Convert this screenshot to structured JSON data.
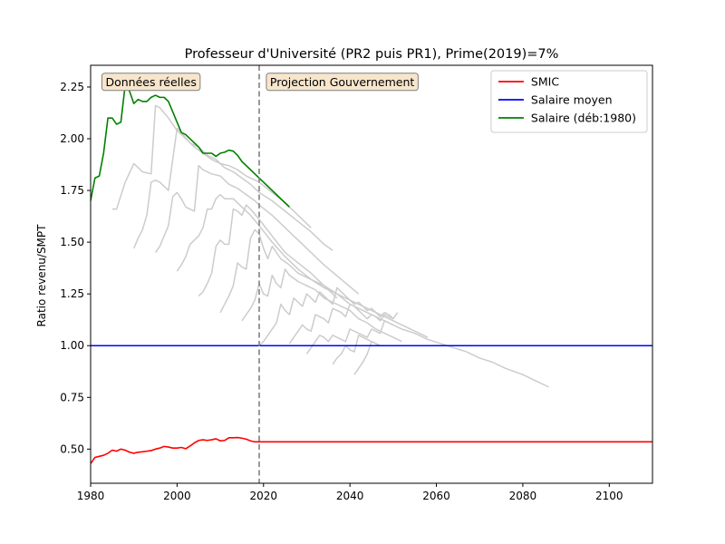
{
  "chart_data": {
    "type": "line",
    "title": "Professeur d'Université (PR2 puis PR1), Prime(2019)=7%",
    "xlabel": "",
    "ylabel": "Ratio revenu/SMPT",
    "xlim": [
      1980,
      2110
    ],
    "ylim": [
      0.335,
      2.355
    ],
    "xticks": [
      1980,
      2000,
      2020,
      2040,
      2060,
      2080,
      2100
    ],
    "yticks": [
      0.5,
      0.75,
      1.0,
      1.25,
      1.5,
      1.75,
      2.0,
      2.25
    ],
    "grid": false,
    "legend_position": "top-right",
    "vline": {
      "x": 2019,
      "color": "#808080",
      "style": "dashed"
    },
    "annotations": [
      {
        "text": "Données réelles",
        "x": 2004.5,
        "y": 2.275,
        "anchor": "end"
      },
      {
        "text": "Projection Gouvernement",
        "x": 2021.5,
        "y": 2.275,
        "anchor": "start"
      }
    ],
    "series": [
      {
        "name": "SMIC",
        "color": "#ff0000",
        "legend": true,
        "x": [
          1980,
          1981,
          1982,
          1983,
          1984,
          1985,
          1986,
          1987,
          1988,
          1989,
          1990,
          1991,
          1992,
          1993,
          1994,
          1995,
          1996,
          1997,
          1998,
          1999,
          2000,
          2001,
          2002,
          2003,
          2004,
          2005,
          2006,
          2007,
          2008,
          2009,
          2010,
          2011,
          2012,
          2013,
          2014,
          2015,
          2016,
          2017,
          2018,
          2019,
          2020,
          2110
        ],
        "y": [
          0.43,
          0.46,
          0.465,
          0.47,
          0.48,
          0.495,
          0.49,
          0.5,
          0.495,
          0.485,
          0.48,
          0.485,
          0.487,
          0.49,
          0.493,
          0.5,
          0.505,
          0.513,
          0.51,
          0.505,
          0.505,
          0.508,
          0.502,
          0.515,
          0.53,
          0.542,
          0.545,
          0.542,
          0.545,
          0.55,
          0.54,
          0.542,
          0.555,
          0.555,
          0.556,
          0.553,
          0.548,
          0.54,
          0.535,
          0.535,
          0.535,
          0.535
        ]
      },
      {
        "name": "Salaire moyen",
        "color": "#0000ff",
        "legend": true,
        "x": [
          1980,
          2110
        ],
        "y": [
          1.0,
          1.0
        ]
      },
      {
        "name": "Salaire (déb:1980)",
        "color": "#008000",
        "legend": true,
        "x": [
          1980,
          1981,
          1982,
          1983,
          1984,
          1985,
          1986,
          1987,
          1988,
          1989,
          1990,
          1991,
          1992,
          1993,
          1994,
          1995,
          1996,
          1997,
          1998,
          1999,
          2000,
          2001,
          2002,
          2003,
          2004,
          2005,
          2006,
          2007,
          2008,
          2009,
          2010,
          2011,
          2012,
          2013,
          2014,
          2015,
          2016,
          2017,
          2018,
          2019,
          2020,
          2021,
          2022,
          2023,
          2024,
          2025,
          2026
        ],
        "y": [
          1.7,
          1.81,
          1.82,
          1.93,
          2.1,
          2.1,
          2.07,
          2.08,
          2.26,
          2.23,
          2.17,
          2.19,
          2.18,
          2.18,
          2.2,
          2.21,
          2.2,
          2.2,
          2.18,
          2.13,
          2.08,
          2.03,
          2.02,
          2.0,
          1.98,
          1.96,
          1.93,
          1.93,
          1.93,
          1.915,
          1.93,
          1.935,
          1.945,
          1.94,
          1.92,
          1.89,
          1.87,
          1.85,
          1.83,
          1.81,
          1.79,
          1.77,
          1.75,
          1.73,
          1.71,
          1.69,
          1.67
        ]
      },
      {
        "name": "",
        "color": "#cccccc",
        "legend": false,
        "x": [
          1985,
          1986,
          1988,
          1990,
          1991,
          1992,
          1994,
          1995,
          1996,
          1998,
          2000,
          2001,
          2002,
          2004,
          2006,
          2008,
          2010,
          2012,
          2014,
          2016,
          2019,
          2022,
          2025,
          2028,
          2031
        ],
        "y": [
          1.66,
          1.66,
          1.79,
          1.88,
          1.86,
          1.84,
          1.83,
          2.16,
          2.15,
          2.1,
          2.04,
          2.02,
          2.0,
          1.96,
          1.93,
          1.9,
          1.88,
          1.87,
          1.85,
          1.82,
          1.79,
          1.74,
          1.69,
          1.63,
          1.57
        ]
      },
      {
        "name": "",
        "color": "#cccccc",
        "legend": false,
        "x": [
          1990,
          1991,
          1992,
          1993,
          1994,
          1995,
          1996,
          1998,
          2000,
          2001,
          2003,
          2005,
          2007,
          2009,
          2011,
          2013,
          2015,
          2017,
          2019,
          2022,
          2025,
          2028,
          2031,
          2034,
          2036
        ],
        "y": [
          1.47,
          1.52,
          1.56,
          1.63,
          1.79,
          1.8,
          1.79,
          1.75,
          2.05,
          2.03,
          1.98,
          1.96,
          1.92,
          1.9,
          1.86,
          1.84,
          1.81,
          1.78,
          1.74,
          1.7,
          1.65,
          1.6,
          1.55,
          1.49,
          1.46
        ]
      },
      {
        "name": "",
        "color": "#cccccc",
        "legend": false,
        "x": [
          1995,
          1996,
          1997,
          1998,
          1999,
          2000,
          2001,
          2002,
          2004,
          2005,
          2006,
          2008,
          2010,
          2012,
          2014,
          2016,
          2018,
          2019,
          2022,
          2026,
          2030,
          2034,
          2038,
          2042
        ],
        "y": [
          1.45,
          1.48,
          1.53,
          1.58,
          1.72,
          1.74,
          1.71,
          1.67,
          1.65,
          1.87,
          1.85,
          1.83,
          1.82,
          1.78,
          1.76,
          1.73,
          1.7,
          1.68,
          1.63,
          1.55,
          1.47,
          1.39,
          1.32,
          1.25
        ]
      },
      {
        "name": "",
        "color": "#cccccc",
        "legend": false,
        "x": [
          2000,
          2001,
          2002,
          2003,
          2004,
          2005,
          2006,
          2007,
          2008,
          2009,
          2010,
          2011,
          2013,
          2015,
          2017,
          2019,
          2022,
          2025,
          2028,
          2031,
          2034,
          2037,
          2040,
          2043,
          2046,
          2049,
          2052,
          2055,
          2058,
          2061,
          2064,
          2067,
          2070,
          2073,
          2076,
          2080,
          2083,
          2086
        ],
        "y": [
          1.36,
          1.39,
          1.43,
          1.49,
          1.51,
          1.53,
          1.57,
          1.66,
          1.66,
          1.71,
          1.73,
          1.71,
          1.71,
          1.67,
          1.63,
          1.58,
          1.5,
          1.43,
          1.37,
          1.32,
          1.29,
          1.25,
          1.2,
          1.17,
          1.14,
          1.11,
          1.08,
          1.06,
          1.03,
          1.01,
          0.99,
          0.97,
          0.94,
          0.92,
          0.89,
          0.86,
          0.83,
          0.8
        ]
      },
      {
        "name": "",
        "color": "#cccccc",
        "legend": false,
        "x": [
          2005,
          2006,
          2007,
          2008,
          2009,
          2010,
          2011,
          2012,
          2013,
          2014,
          2015,
          2016,
          2017,
          2019,
          2022,
          2025,
          2028,
          2031,
          2034,
          2037
        ],
        "y": [
          1.24,
          1.26,
          1.3,
          1.35,
          1.48,
          1.51,
          1.49,
          1.49,
          1.66,
          1.65,
          1.63,
          1.68,
          1.66,
          1.61,
          1.53,
          1.45,
          1.4,
          1.35,
          1.29,
          1.23
        ]
      },
      {
        "name": "",
        "color": "#cccccc",
        "legend": false,
        "x": [
          2010,
          2011,
          2012,
          2013,
          2014,
          2015,
          2016,
          2017,
          2018,
          2019,
          2020,
          2021,
          2022,
          2023,
          2024,
          2026,
          2028,
          2031,
          2034,
          2038,
          2042,
          2046,
          2050,
          2054,
          2058
        ],
        "y": [
          1.16,
          1.2,
          1.24,
          1.29,
          1.4,
          1.38,
          1.37,
          1.52,
          1.56,
          1.54,
          1.47,
          1.42,
          1.48,
          1.45,
          1.42,
          1.39,
          1.35,
          1.32,
          1.28,
          1.24,
          1.2,
          1.16,
          1.12,
          1.08,
          1.04
        ]
      },
      {
        "name": "",
        "color": "#cccccc",
        "legend": false,
        "x": [
          2015,
          2016,
          2017,
          2018,
          2019,
          2020,
          2021,
          2022,
          2023,
          2024,
          2025,
          2026,
          2028,
          2030,
          2032,
          2034,
          2036,
          2038,
          2040,
          2042,
          2044,
          2046,
          2048,
          2050,
          2052
        ],
        "y": [
          1.12,
          1.15,
          1.18,
          1.22,
          1.3,
          1.25,
          1.24,
          1.34,
          1.3,
          1.28,
          1.37,
          1.34,
          1.31,
          1.29,
          1.27,
          1.23,
          1.21,
          1.19,
          1.17,
          1.13,
          1.11,
          1.08,
          1.06,
          1.04,
          1.02
        ]
      },
      {
        "name": "",
        "color": "#cccccc",
        "legend": false,
        "x": [
          2019,
          2020,
          2021,
          2022,
          2023,
          2024,
          2025,
          2026,
          2027,
          2028,
          2029,
          2030,
          2031,
          2032,
          2033,
          2034,
          2035,
          2036,
          2037,
          2038,
          2039,
          2040,
          2041,
          2042,
          2043,
          2044,
          2045,
          2046,
          2047,
          2048,
          2049,
          2050
        ],
        "y": [
          1.0,
          1.02,
          1.05,
          1.08,
          1.11,
          1.2,
          1.17,
          1.15,
          1.23,
          1.21,
          1.19,
          1.25,
          1.23,
          1.21,
          1.26,
          1.24,
          1.22,
          1.2,
          1.28,
          1.26,
          1.24,
          1.22,
          1.2,
          1.21,
          1.19,
          1.17,
          1.18,
          1.16,
          1.14,
          1.16,
          1.15,
          1.13
        ]
      },
      {
        "name": "",
        "color": "#cccccc",
        "legend": false,
        "x": [
          2026,
          2027,
          2028,
          2029,
          2030,
          2031,
          2032,
          2033,
          2034,
          2035,
          2036,
          2037,
          2038,
          2039,
          2040,
          2041,
          2042,
          2043,
          2044,
          2045,
          2046,
          2047,
          2048,
          2049,
          2050,
          2051
        ],
        "y": [
          1.01,
          1.04,
          1.07,
          1.1,
          1.08,
          1.07,
          1.15,
          1.14,
          1.13,
          1.11,
          1.18,
          1.17,
          1.16,
          1.14,
          1.2,
          1.19,
          1.17,
          1.15,
          1.13,
          1.15,
          1.14,
          1.12,
          1.15,
          1.14,
          1.13,
          1.16
        ]
      },
      {
        "name": "",
        "color": "#cccccc",
        "legend": false,
        "x": [
          2030,
          2031,
          2032,
          2033,
          2034,
          2035,
          2036,
          2037,
          2038,
          2039,
          2040,
          2041,
          2042,
          2043,
          2044,
          2045,
          2046,
          2047,
          2048,
          2049,
          2050
        ],
        "y": [
          0.96,
          0.99,
          1.02,
          1.05,
          1.04,
          1.02,
          1.05,
          1.04,
          1.03,
          1.02,
          1.08,
          1.07,
          1.06,
          1.05,
          1.04,
          1.08,
          1.07,
          1.06,
          1.12,
          1.11,
          1.1
        ]
      },
      {
        "name": "",
        "color": "#cccccc",
        "legend": false,
        "x": [
          2036,
          2037,
          2038,
          2039,
          2040,
          2041,
          2042,
          2043,
          2044,
          2045,
          2046,
          2047
        ],
        "y": [
          0.91,
          0.94,
          0.96,
          1.0,
          0.98,
          0.97,
          1.05,
          1.04,
          1.03,
          1.02,
          1.01,
          1.0
        ]
      },
      {
        "name": "",
        "color": "#cccccc",
        "legend": false,
        "x": [
          2041,
          2042,
          2043,
          2044,
          2045,
          2046,
          2047
        ],
        "y": [
          0.86,
          0.89,
          0.92,
          0.96,
          1.02,
          1.01,
          1.0
        ]
      }
    ]
  }
}
